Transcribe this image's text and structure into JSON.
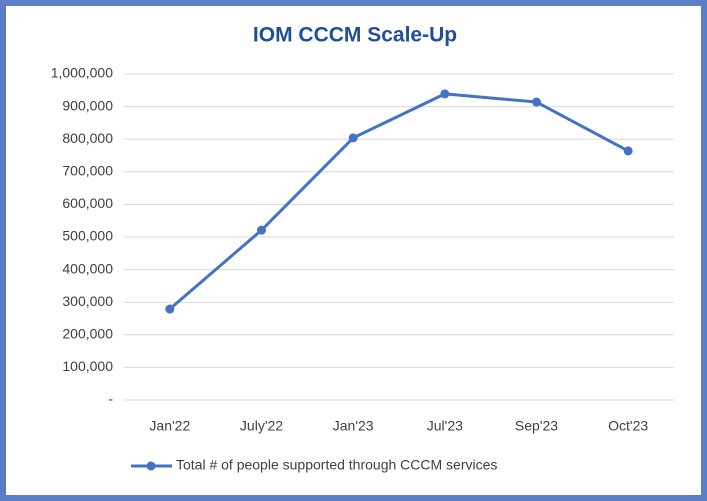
{
  "chart_data": {
    "type": "line",
    "title": "IOM CCCM Scale-Up",
    "categories": [
      "Jan'22",
      "July'22",
      "Jan'23",
      "Jul'23",
      "Sep'23",
      "Oct'23"
    ],
    "series": [
      {
        "name": "Total # of people supported through CCCM services",
        "color": "#4472c4",
        "values": [
          279000,
          521000,
          804000,
          939000,
          914000,
          764000
        ]
      }
    ],
    "ylim": [
      0,
      1000000
    ],
    "yticks": [
      {
        "value": 0,
        "label": "-"
      },
      {
        "value": 100000,
        "label": "100,000"
      },
      {
        "value": 200000,
        "label": "200,000"
      },
      {
        "value": 300000,
        "label": "300,000"
      },
      {
        "value": 400000,
        "label": "400,000"
      },
      {
        "value": 500000,
        "label": "500,000"
      },
      {
        "value": 600000,
        "label": "600,000"
      },
      {
        "value": 700000,
        "label": "700,000"
      },
      {
        "value": 800000,
        "label": "800,000"
      },
      {
        "value": 900000,
        "label": "900,000"
      },
      {
        "value": 1000000,
        "label": "1,000,000"
      }
    ],
    "grid": true,
    "legend": "bottom"
  }
}
